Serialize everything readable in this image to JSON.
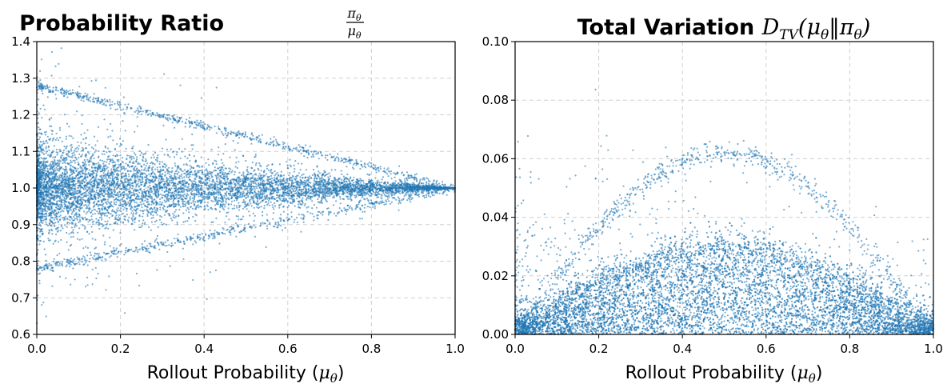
{
  "chart_data": [
    {
      "type": "scatter",
      "title_main": "Probability Ratio ",
      "title_formula": "πθ/μθ",
      "title_num": "π",
      "title_num_sub": "θ",
      "title_den": "μ",
      "title_den_sub": "θ",
      "xlabel_main": "Rollout Probability (",
      "xlabel_sym": "μ",
      "xlabel_sub": "θ",
      "xlabel_close": ")",
      "xlim": [
        0.0,
        1.0
      ],
      "ylim": [
        0.6,
        1.4
      ],
      "xticks": [
        "0.0",
        "0.2",
        "0.4",
        "0.6",
        "0.8",
        "1.0"
      ],
      "yticks": [
        "0.6",
        "0.7",
        "0.8",
        "0.9",
        "1.0",
        "1.1",
        "1.2",
        "1.3",
        "1.4"
      ],
      "grid": true,
      "color": "#1f77b4",
      "series": [
        {
          "name": "ratio dense core",
          "description_range": "~1.0 ± 0.12 at x=0, narrowing to 1.0 at x=1"
        },
        {
          "name": "upper band",
          "values_at_x0": 1.28,
          "values_at_x1": 1.0
        },
        {
          "name": "lower band",
          "values_at_x0": 0.78,
          "values_at_x1": 1.0
        }
      ]
    },
    {
      "type": "scatter",
      "title_main": "Total Variation ",
      "title_formula": "D_TV(μθ‖πθ)",
      "title_D": "D",
      "title_D_sub": "TV",
      "title_args_open": "(μ",
      "title_args_sub1": "θ",
      "title_args_mid": "‖π",
      "title_args_sub2": "θ",
      "title_args_close": ")",
      "xlabel_main": "Rollout Probability (",
      "xlabel_sym": "μ",
      "xlabel_sub": "θ",
      "xlabel_close": ")",
      "xlim": [
        0.0,
        1.0
      ],
      "ylim": [
        0.0,
        0.1
      ],
      "xticks": [
        "0.0",
        "0.2",
        "0.4",
        "0.6",
        "0.8",
        "1.0"
      ],
      "yticks": [
        "0.00",
        "0.02",
        "0.04",
        "0.06",
        "0.08",
        "0.10"
      ],
      "grid": true,
      "color": "#1f77b4",
      "series": [
        {
          "name": "lower arc",
          "peak_x": 0.5,
          "peak_y": 0.03
        },
        {
          "name": "upper arc",
          "peak_x": 0.5,
          "peak_y": 0.062
        }
      ]
    }
  ]
}
